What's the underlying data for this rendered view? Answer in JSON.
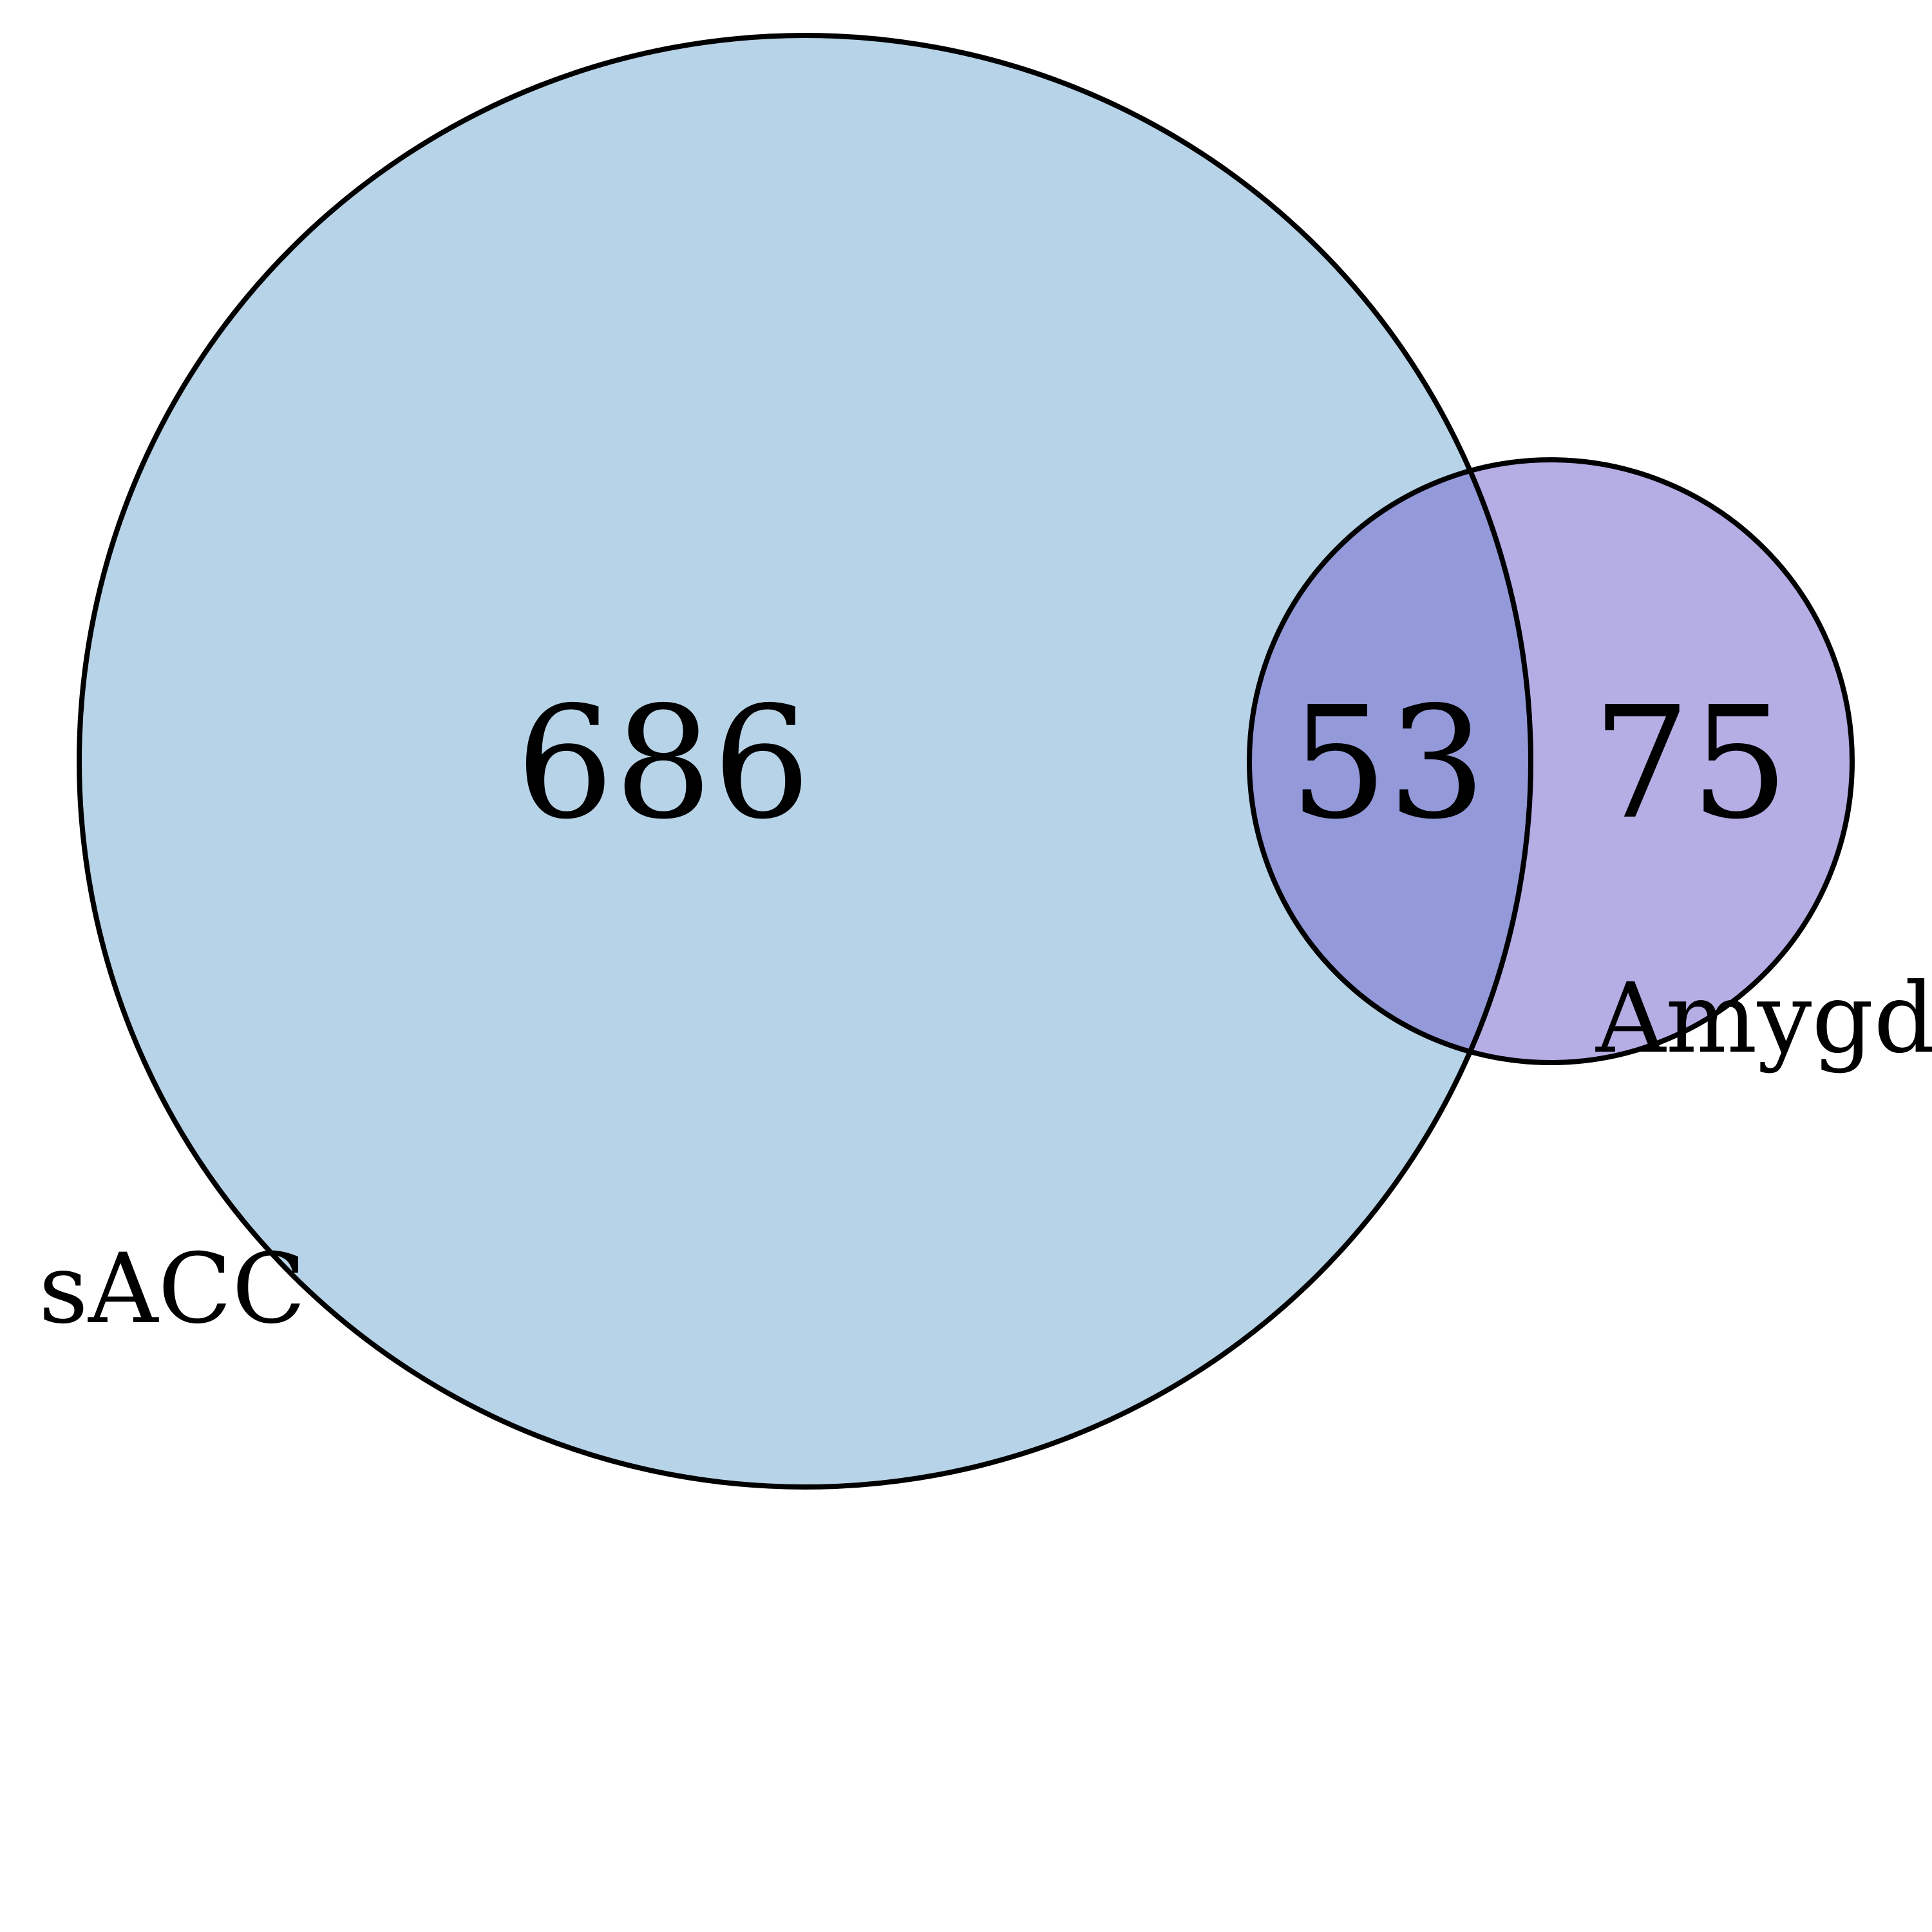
{
  "diagram": {
    "type": "venn",
    "sets": [
      {
        "key": "A",
        "label": "sACC",
        "color": "#b7d3e7"
      },
      {
        "key": "B",
        "label": "Amygdala",
        "color": "#b4aee5"
      }
    ],
    "regions": {
      "only_A": {
        "count": "686"
      },
      "A_and_B": {
        "count": "53",
        "color": "#9399d9"
      },
      "only_B": {
        "count": "75"
      }
    },
    "outline_color": "#000000",
    "background": "#ffffff"
  }
}
